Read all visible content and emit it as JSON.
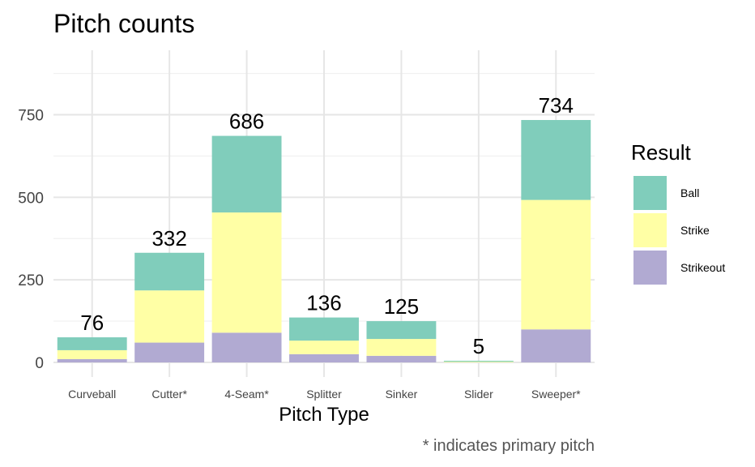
{
  "chart_data": {
    "type": "bar",
    "stacked": true,
    "title": "Pitch counts",
    "xlabel": "Pitch Type",
    "ylabel": "",
    "caption": "* indicates primary pitch",
    "categories": [
      "Curveball",
      "Cutter*",
      "4-Seam*",
      "Splitter",
      "Sinker",
      "Slider",
      "Sweeper*"
    ],
    "series": [
      {
        "name": "Strikeout",
        "color": "#B1AAD2",
        "values": [
          10,
          60,
          90,
          25,
          20,
          0,
          100
        ]
      },
      {
        "name": "Strike",
        "color": "#FFFFA5",
        "values": [
          27,
          158,
          364,
          41,
          51,
          2,
          392
        ]
      },
      {
        "name": "Ball",
        "color": "#80CDBB",
        "values": [
          39,
          114,
          232,
          70,
          54,
          3,
          242
        ]
      }
    ],
    "totals": [
      76,
      332,
      686,
      136,
      125,
      5,
      734
    ],
    "ylim": [
      0,
      935
    ],
    "yticks": [
      0,
      250,
      500,
      750
    ],
    "grid": true,
    "legend": {
      "title": "Result",
      "position": "right",
      "entries": [
        {
          "name": "Ball",
          "color": "#80CDBB"
        },
        {
          "name": "Strike",
          "color": "#FFFFA5"
        },
        {
          "name": "Strikeout",
          "color": "#B1AAD2"
        }
      ]
    }
  }
}
